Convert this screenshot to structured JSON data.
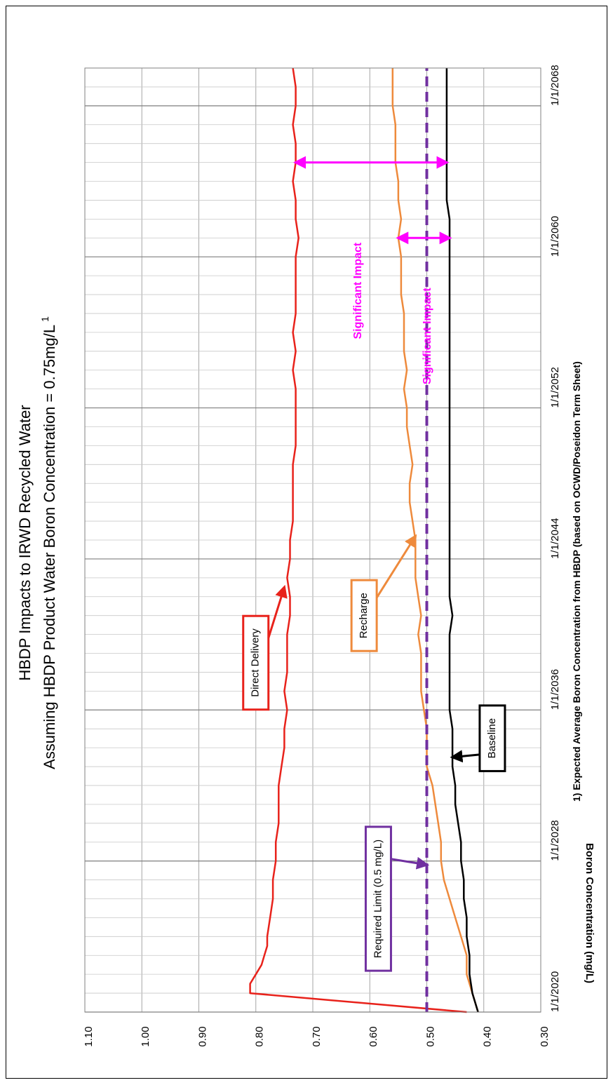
{
  "chart_data": {
    "type": "line",
    "title": "HBDP Impacts to IRWD Recycled Water",
    "subtitle": "Assuming HBDP Product Water Boron Concentration = 0.75mg/L",
    "subtitle_superscript": "1",
    "ylabel": "Boron Concentration (mg/L)",
    "footnote": "1) Expected Average Boron Concentration from HBDP (based on OCWD/Poseidon Term Sheet)",
    "ylim": [
      0.3,
      1.1
    ],
    "y_ticks": [
      "0.30",
      "0.40",
      "0.50",
      "0.60",
      "0.70",
      "0.80",
      "0.90",
      "1.00",
      "1.10"
    ],
    "xlim": [
      "2020-01-01",
      "2070-01-01"
    ],
    "x_ticks": [
      "1/1/2020",
      "1/1/2028",
      "1/1/2036",
      "1/1/2044",
      "1/1/2052",
      "1/1/2060",
      "1/1/2068"
    ],
    "grid": true,
    "series": [
      {
        "name": "Direct Delivery",
        "color": "#e8221b",
        "x": [
          2020.0,
          2021.0,
          2021.5,
          2022.0,
          2022.5,
          2023.0,
          2023.5,
          2024.0,
          2025.0,
          2026.0,
          2027.0,
          2028.0,
          2029.0,
          2030.0,
          2031.0,
          2032.0,
          2033.0,
          2034.0,
          2035.0,
          2036.0,
          2037.0,
          2038.0,
          2039.0,
          2040.0,
          2041.0,
          2042.0,
          2043.0,
          2044.0,
          2045.0,
          2046.0,
          2047.0,
          2048.0,
          2049.0,
          2050.0,
          2051.0,
          2052.0,
          2053.0,
          2054.0,
          2055.0,
          2056.0,
          2057.0,
          2058.0,
          2059.0,
          2060.0,
          2061.0,
          2062.0,
          2063.0,
          2064.0,
          2065.0,
          2066.0,
          2067.0,
          2068.0,
          2069.0,
          2070.0
        ],
        "values": [
          0.43,
          0.81,
          0.81,
          0.8,
          0.79,
          0.785,
          0.78,
          0.78,
          0.775,
          0.77,
          0.77,
          0.765,
          0.765,
          0.76,
          0.76,
          0.76,
          0.755,
          0.75,
          0.75,
          0.745,
          0.75,
          0.745,
          0.745,
          0.745,
          0.74,
          0.74,
          0.745,
          0.74,
          0.74,
          0.735,
          0.735,
          0.735,
          0.735,
          0.73,
          0.73,
          0.73,
          0.73,
          0.735,
          0.73,
          0.735,
          0.73,
          0.73,
          0.73,
          0.73,
          0.725,
          0.73,
          0.73,
          0.735,
          0.73,
          0.73,
          0.735,
          0.73,
          0.73,
          0.735
        ]
      },
      {
        "name": "Recharge",
        "color": "#ee8a3c",
        "x": [
          2020.0,
          2021.0,
          2022.0,
          2023.0,
          2024.0,
          2025.0,
          2026.0,
          2027.0,
          2028.0,
          2029.0,
          2030.0,
          2031.0,
          2032.0,
          2033.0,
          2034.0,
          2035.0,
          2036.0,
          2037.0,
          2038.0,
          2039.0,
          2040.0,
          2041.0,
          2042.0,
          2043.0,
          2044.0,
          2045.0,
          2046.0,
          2047.0,
          2048.0,
          2049.0,
          2050.0,
          2051.0,
          2052.0,
          2053.0,
          2054.0,
          2055.0,
          2056.0,
          2057.0,
          2058.0,
          2059.0,
          2060.0,
          2061.0,
          2062.0,
          2063.0,
          2064.0,
          2065.0,
          2066.0,
          2067.0,
          2068.0,
          2069.0,
          2070.0
        ],
        "values": [
          0.41,
          0.42,
          0.43,
          0.43,
          0.44,
          0.45,
          0.46,
          0.47,
          0.475,
          0.475,
          0.48,
          0.485,
          0.49,
          0.5,
          0.5,
          0.5,
          0.505,
          0.51,
          0.51,
          0.51,
          0.515,
          0.51,
          0.515,
          0.52,
          0.52,
          0.52,
          0.525,
          0.53,
          0.53,
          0.525,
          0.53,
          0.535,
          0.535,
          0.54,
          0.535,
          0.54,
          0.54,
          0.54,
          0.545,
          0.545,
          0.545,
          0.55,
          0.545,
          0.55,
          0.55,
          0.555,
          0.555,
          0.555,
          0.56,
          0.56,
          0.56
        ]
      },
      {
        "name": "Baseline",
        "color": "#000000",
        "x": [
          2020.0,
          2021.0,
          2022.0,
          2023.0,
          2024.0,
          2025.0,
          2026.0,
          2027.0,
          2028.0,
          2029.0,
          2030.0,
          2031.0,
          2032.0,
          2033.0,
          2034.0,
          2035.0,
          2036.0,
          2037.0,
          2038.0,
          2039.0,
          2040.0,
          2041.0,
          2042.0,
          2043.0,
          2044.0,
          2045.0,
          2046.0,
          2047.0,
          2048.0,
          2049.0,
          2050.0,
          2051.0,
          2052.0,
          2053.0,
          2054.0,
          2055.0,
          2056.0,
          2057.0,
          2058.0,
          2059.0,
          2060.0,
          2061.0,
          2062.0,
          2063.0,
          2064.0,
          2065.0,
          2066.0,
          2067.0,
          2068.0,
          2069.0,
          2070.0
        ],
        "values": [
          0.41,
          0.42,
          0.425,
          0.425,
          0.43,
          0.43,
          0.435,
          0.435,
          0.44,
          0.44,
          0.445,
          0.45,
          0.45,
          0.455,
          0.455,
          0.455,
          0.46,
          0.46,
          0.46,
          0.46,
          0.46,
          0.455,
          0.46,
          0.46,
          0.46,
          0.46,
          0.46,
          0.46,
          0.46,
          0.46,
          0.46,
          0.46,
          0.46,
          0.46,
          0.46,
          0.46,
          0.46,
          0.46,
          0.46,
          0.46,
          0.46,
          0.46,
          0.46,
          0.465,
          0.465,
          0.465,
          0.465,
          0.465,
          0.465,
          0.465,
          0.465
        ]
      },
      {
        "name": "Required  Limit (0.5 mg/L)",
        "color": "#7030a0",
        "dashed": true,
        "x": [
          2020.0,
          2070.0
        ],
        "values": [
          0.5,
          0.5
        ]
      }
    ],
    "annotations": {
      "impact_label": "Significant Impact",
      "impact_color": "#ff00ff",
      "impacts": [
        {
          "x": 2065.0,
          "from": 0.73,
          "to": 0.465
        },
        {
          "x": 2061.0,
          "from": 0.55,
          "to": 0.46
        }
      ],
      "callouts": [
        {
          "text": "Direct Delivery",
          "color": "#e8221b",
          "box_value": 0.8,
          "box_center_x": 2038.5,
          "arrow_to_x": 2042.5,
          "arrow_to_value": 0.75
        },
        {
          "text": "Recharge",
          "color": "#ee8a3c",
          "box_value": 0.61,
          "box_center_x": 2041.0,
          "arrow_to_x": 2045.2,
          "arrow_to_value": 0.52
        },
        {
          "text": "Baseline",
          "color": "#000000",
          "box_value": 0.385,
          "box_center_x": 2034.5,
          "arrow_to_x": 2033.5,
          "arrow_to_value": 0.455
        },
        {
          "text": "Required  Limit (0.5 mg/L)",
          "color": "#7030a0",
          "box_value": 0.585,
          "box_center_x": 2026.0,
          "arrow_to_x": 2027.8,
          "arrow_to_value": 0.5
        }
      ]
    }
  }
}
